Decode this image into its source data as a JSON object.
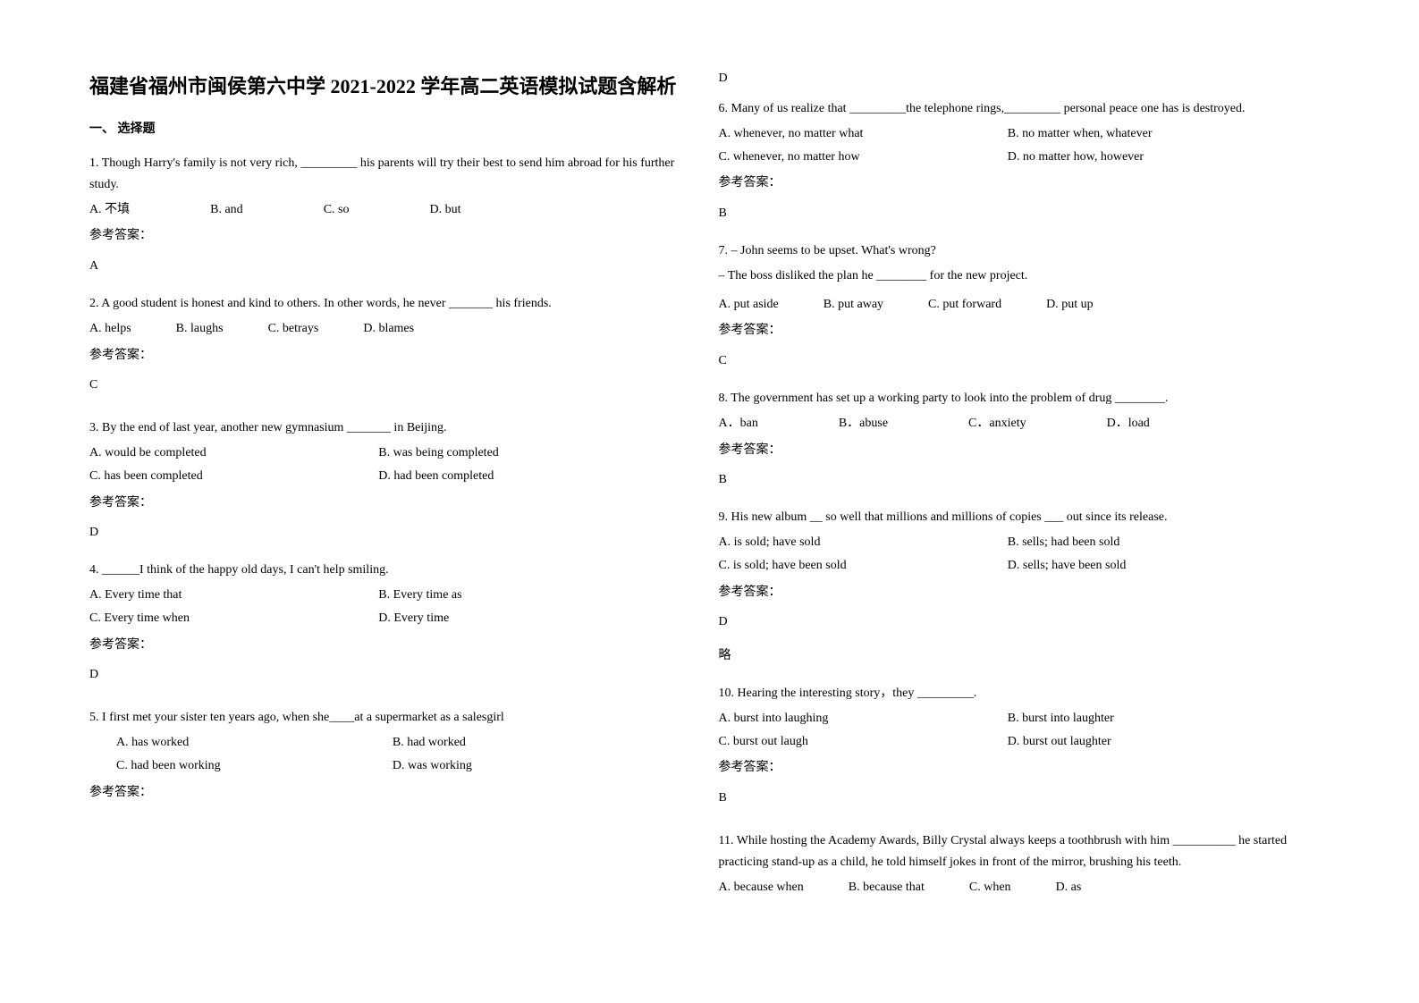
{
  "title": "福建省福州市闽侯第六中学 2021-2022 学年高二英语模拟试题含解析",
  "section_header": "一、 选择题",
  "answer_label": "参考答案：",
  "extra_note": "略",
  "questions_left": [
    {
      "num": "1.",
      "text": " Though Harry's family is not very rich, _________ his parents will try their best to send him abroad for his further study.",
      "opts": [
        "A. 不填",
        "B. and",
        "C. so",
        "D. but"
      ],
      "optClass": "wide",
      "answer": "A"
    },
    {
      "num": "2.",
      "text": "A good student is honest and kind to others. In other words, he never _______ his friends.",
      "opts": [
        "A. helps",
        "B. laughs",
        "C. betrays",
        "D. blames"
      ],
      "optClass": "",
      "answer": "C"
    },
    {
      "num": "3.",
      "text": "By the end of last year, another new gymnasium _______ in Beijing.",
      "opts": [
        "A. would be completed",
        "B. was being completed",
        "C. has been completed",
        "D. had been completed"
      ],
      "optClass": "two-col",
      "answer": "D"
    },
    {
      "num": "4.",
      "text": "______I think of the happy old days, I can't help smiling.",
      "opts": [
        "A. Every time that",
        "B. Every time as",
        "C. Every time when",
        "D. Every time"
      ],
      "optClass": "two-col",
      "answer": "D"
    },
    {
      "num": "5.",
      "text": "I first met your sister ten years ago, when she____at a supermarket as a salesgirl",
      "opts": [
        "A. has worked",
        "B. had worked",
        "C. had been working",
        "D. was working"
      ],
      "optClass": "two-col indented",
      "answer": "D",
      "answer_inline": true
    }
  ],
  "questions_right": [
    {
      "num": "6.",
      "text": "Many of us realize that _________the telephone rings,_________ personal peace one has is destroyed.",
      "opts": [
        "A. whenever, no matter what",
        "B. no matter when, whatever",
        "C. whenever, no matter how",
        "D. no matter how, however"
      ],
      "optClass": "two-col",
      "answer": "B"
    },
    {
      "num": "7.",
      "text1": " – John seems to be upset. What's wrong?",
      "text2": "   – The boss disliked the plan he ________ for the new project.",
      "opts": [
        "A. put aside",
        "B. put away",
        "C. put forward",
        "D. put up"
      ],
      "optClass": "",
      "answer": "C"
    },
    {
      "num": "8.",
      "text": "The government has set up a working party to look into the problem of drug ________.",
      "opts": [
        "A．ban",
        "B．abuse",
        "C．anxiety",
        "D．load"
      ],
      "optClass": "wide",
      "answer": "B"
    },
    {
      "num": "9.",
      "text": "His new album __ so well that millions and millions of copies ___ out since its release.",
      "opts": [
        "A. is sold; have sold",
        "B. sells; had been sold",
        "C. is sold; have been sold",
        "D. sells; have been sold"
      ],
      "optClass": "two-col",
      "answer": "D",
      "extra": true
    },
    {
      "num": "10.",
      "text": "Hearing the interesting story，they _________.",
      "opts": [
        "A. burst into laughing",
        "B. burst into laughter",
        "C. burst out laugh",
        "D. burst out laughter"
      ],
      "optClass": "two-col",
      "answer": "B"
    },
    {
      "num": "11.",
      "text": "While hosting the Academy Awards, Billy Crystal always keeps a toothbrush with him __________ he started practicing stand-up as a child, he told himself jokes in front of the mirror, brushing his teeth.",
      "opts": [
        "A. because when",
        "B. because that",
        "C. when",
        "D. as"
      ],
      "optClass": "",
      "answer": "",
      "noanswer": true
    }
  ]
}
